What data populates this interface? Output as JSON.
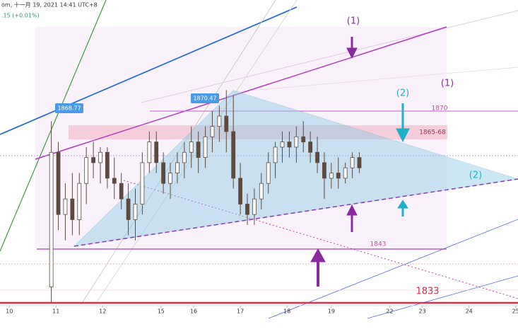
{
  "chart_data": {
    "type": "candlestick",
    "header": "om, 十一月 19, 2021 14:41 UTC+8",
    "subheader": ".15 (+0.01%)",
    "annotations": [
      "(1)",
      "(1)",
      "(2)",
      "(2)",
      "1870",
      "1865-68",
      "1843",
      "1833",
      "1868.77",
      "1870.47"
    ],
    "x": [
      22,
      25,
      28,
      31,
      34,
      37,
      40,
      43,
      46,
      49,
      52,
      55,
      58,
      61,
      64,
      67,
      70,
      73,
      76,
      79,
      82,
      85,
      88,
      91,
      94,
      97,
      100,
      103,
      106,
      109,
      112,
      115,
      118,
      121,
      124,
      127,
      130,
      133,
      136,
      139,
      142,
      145,
      148,
      151,
      154
    ],
    "open": [
      1836,
      1862,
      1850,
      1853,
      1849,
      1856,
      1861,
      1860,
      1862,
      1857,
      1856,
      1853,
      1849,
      1852,
      1860,
      1864,
      1860,
      1856,
      1858,
      1860,
      1862,
      1864,
      1861,
      1865,
      1867,
      1869,
      1866,
      1857,
      1852,
      1850,
      1853,
      1856,
      1860,
      1863,
      1864,
      1863,
      1865,
      1864,
      1862,
      1860,
      1857,
      1858,
      1857,
      1859,
      1861
    ],
    "high": [
      1868,
      1864,
      1856,
      1858,
      1858,
      1863,
      1864,
      1863,
      1863,
      1861,
      1858,
      1856,
      1855,
      1862,
      1866,
      1866,
      1862,
      1860,
      1862,
      1864,
      1867,
      1866,
      1867,
      1870,
      1871,
      1874,
      1873,
      1860,
      1854,
      1855,
      1858,
      1862,
      1864,
      1866,
      1866,
      1867,
      1868,
      1866,
      1865,
      1862,
      1860,
      1861,
      1860,
      1862,
      1862
    ],
    "low": [
      1833,
      1847,
      1845,
      1846,
      1846,
      1852,
      1857,
      1856,
      1855,
      1853,
      1851,
      1846,
      1845,
      1850,
      1858,
      1858,
      1854,
      1853,
      1856,
      1857,
      1859,
      1858,
      1859,
      1862,
      1864,
      1862,
      1855,
      1850,
      1848,
      1848,
      1851,
      1854,
      1857,
      1860,
      1861,
      1860,
      1862,
      1860,
      1858,
      1853,
      1855,
      1855,
      1856,
      1857,
      1858
    ],
    "close": [
      1862,
      1850,
      1853,
      1849,
      1856,
      1861,
      1860,
      1862,
      1857,
      1856,
      1853,
      1849,
      1852,
      1860,
      1864,
      1860,
      1856,
      1858,
      1860,
      1862,
      1864,
      1861,
      1865,
      1867,
      1869,
      1866,
      1857,
      1852,
      1850,
      1853,
      1856,
      1860,
      1863,
      1864,
      1863,
      1865,
      1864,
      1862,
      1860,
      1857,
      1858,
      1857,
      1859,
      1861,
      1859
    ],
    "color": "#5c4a40",
    "xlim": [
      0,
      222
    ],
    "ylim": [
      1832.4,
      1891.4
    ],
    "xticks": [
      {
        "value": 4,
        "label": "10"
      },
      {
        "value": 24,
        "label": "11"
      },
      {
        "value": 44,
        "label": "12"
      },
      {
        "value": 69,
        "label": "15"
      },
      {
        "value": 83,
        "label": "16"
      },
      {
        "value": 103,
        "label": "17"
      },
      {
        "value": 123,
        "label": "18"
      },
      {
        "value": 142,
        "label": "19"
      },
      {
        "value": 167,
        "label": "22"
      },
      {
        "value": 181,
        "label": "23"
      },
      {
        "value": 201,
        "label": "24"
      },
      {
        "value": 221,
        "label": "25"
      }
    ]
  }
}
